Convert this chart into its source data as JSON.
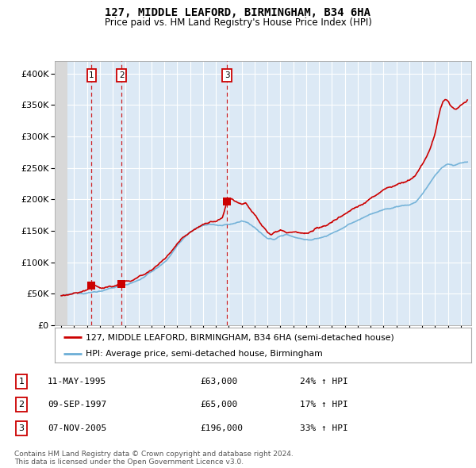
{
  "title1": "127, MIDDLE LEAFORD, BIRMINGHAM, B34 6HA",
  "title2": "Price paid vs. HM Land Registry's House Price Index (HPI)",
  "legend_label_red": "127, MIDDLE LEAFORD, BIRMINGHAM, B34 6HA (semi-detached house)",
  "legend_label_blue": "HPI: Average price, semi-detached house, Birmingham",
  "transactions": [
    {
      "label": "1",
      "date_num": 1995.36,
      "price": 63000
    },
    {
      "label": "2",
      "date_num": 1997.69,
      "price": 65000
    },
    {
      "label": "3",
      "date_num": 2005.85,
      "price": 196000
    }
  ],
  "table_rows": [
    {
      "num": "1",
      "date": "11-MAY-1995",
      "price": "£63,000",
      "hpi": "24% ↑ HPI"
    },
    {
      "num": "2",
      "date": "09-SEP-1997",
      "price": "£65,000",
      "hpi": "17% ↑ HPI"
    },
    {
      "num": "3",
      "date": "07-NOV-2005",
      "price": "£196,000",
      "hpi": "33% ↑ HPI"
    }
  ],
  "footer": "Contains HM Land Registry data © Crown copyright and database right 2024.\nThis data is licensed under the Open Government Licence v3.0.",
  "ylim": [
    0,
    420000
  ],
  "xlim": [
    1992.5,
    2024.8
  ],
  "yticks": [
    0,
    50000,
    100000,
    150000,
    200000,
    250000,
    300000,
    350000,
    400000
  ],
  "ytick_labels": [
    "£0",
    "£50K",
    "£100K",
    "£150K",
    "£200K",
    "£250K",
    "£300K",
    "£350K",
    "£400K"
  ],
  "xticks": [
    1993,
    1994,
    1995,
    1996,
    1997,
    1998,
    1999,
    2000,
    2001,
    2002,
    2003,
    2004,
    2005,
    2006,
    2007,
    2008,
    2009,
    2010,
    2011,
    2012,
    2013,
    2014,
    2015,
    2016,
    2017,
    2018,
    2019,
    2020,
    2021,
    2022,
    2023,
    2024
  ],
  "background_color": "#ffffff",
  "plot_bg_color": "#dce9f5",
  "grid_color": "#ffffff",
  "red_color": "#cc0000",
  "blue_color": "#6baed6",
  "hpi_base_points": [
    [
      1993.0,
      47000
    ],
    [
      1993.5,
      47500
    ],
    [
      1994.0,
      49000
    ],
    [
      1994.5,
      50000
    ],
    [
      1995.0,
      51500
    ],
    [
      1995.5,
      53000
    ],
    [
      1996.0,
      55000
    ],
    [
      1996.5,
      57000
    ],
    [
      1997.0,
      59000
    ],
    [
      1997.5,
      62000
    ],
    [
      1998.0,
      65000
    ],
    [
      1998.5,
      68000
    ],
    [
      1999.0,
      72000
    ],
    [
      1999.5,
      78000
    ],
    [
      2000.0,
      85000
    ],
    [
      2000.5,
      92000
    ],
    [
      2001.0,
      100000
    ],
    [
      2001.5,
      112000
    ],
    [
      2002.0,
      127000
    ],
    [
      2002.5,
      140000
    ],
    [
      2003.0,
      150000
    ],
    [
      2003.5,
      157000
    ],
    [
      2004.0,
      162000
    ],
    [
      2004.5,
      165000
    ],
    [
      2005.0,
      163000
    ],
    [
      2005.5,
      162000
    ],
    [
      2006.0,
      163000
    ],
    [
      2006.5,
      165000
    ],
    [
      2007.0,
      168000
    ],
    [
      2007.5,
      165000
    ],
    [
      2008.0,
      158000
    ],
    [
      2008.5,
      148000
    ],
    [
      2009.0,
      138000
    ],
    [
      2009.5,
      137000
    ],
    [
      2010.0,
      143000
    ],
    [
      2010.5,
      145000
    ],
    [
      2011.0,
      142000
    ],
    [
      2011.5,
      140000
    ],
    [
      2012.0,
      138000
    ],
    [
      2012.5,
      138000
    ],
    [
      2013.0,
      140000
    ],
    [
      2013.5,
      143000
    ],
    [
      2014.0,
      148000
    ],
    [
      2014.5,
      153000
    ],
    [
      2015.0,
      158000
    ],
    [
      2015.5,
      163000
    ],
    [
      2016.0,
      168000
    ],
    [
      2016.5,
      173000
    ],
    [
      2017.0,
      178000
    ],
    [
      2017.5,
      182000
    ],
    [
      2018.0,
      185000
    ],
    [
      2018.5,
      187000
    ],
    [
      2019.0,
      190000
    ],
    [
      2019.5,
      192000
    ],
    [
      2020.0,
      193000
    ],
    [
      2020.5,
      198000
    ],
    [
      2021.0,
      210000
    ],
    [
      2021.5,
      225000
    ],
    [
      2022.0,
      240000
    ],
    [
      2022.5,
      252000
    ],
    [
      2023.0,
      258000
    ],
    [
      2023.5,
      255000
    ],
    [
      2024.0,
      258000
    ],
    [
      2024.5,
      260000
    ]
  ],
  "pp_base_points": [
    [
      1993.0,
      47000
    ],
    [
      1993.5,
      47500
    ],
    [
      1994.0,
      49000
    ],
    [
      1994.5,
      50500
    ],
    [
      1995.0,
      52000
    ],
    [
      1995.36,
      63000
    ],
    [
      1995.5,
      62000
    ],
    [
      1995.8,
      60000
    ],
    [
      1996.0,
      58000
    ],
    [
      1996.5,
      58500
    ],
    [
      1997.0,
      60000
    ],
    [
      1997.69,
      65000
    ],
    [
      1997.9,
      65000
    ],
    [
      1998.0,
      66000
    ],
    [
      1998.5,
      69000
    ],
    [
      1999.0,
      74000
    ],
    [
      1999.5,
      80000
    ],
    [
      2000.0,
      88000
    ],
    [
      2000.5,
      96000
    ],
    [
      2001.0,
      105000
    ],
    [
      2001.5,
      115000
    ],
    [
      2002.0,
      128000
    ],
    [
      2002.5,
      140000
    ],
    [
      2003.0,
      150000
    ],
    [
      2003.5,
      157000
    ],
    [
      2004.0,
      163000
    ],
    [
      2004.5,
      167000
    ],
    [
      2005.0,
      168000
    ],
    [
      2005.5,
      172000
    ],
    [
      2005.85,
      196000
    ],
    [
      2006.0,
      198000
    ],
    [
      2006.2,
      200000
    ],
    [
      2006.5,
      197000
    ],
    [
      2007.0,
      195000
    ],
    [
      2007.3,
      198000
    ],
    [
      2007.5,
      193000
    ],
    [
      2008.0,
      182000
    ],
    [
      2008.5,
      168000
    ],
    [
      2009.0,
      155000
    ],
    [
      2009.3,
      152000
    ],
    [
      2009.5,
      155000
    ],
    [
      2010.0,
      162000
    ],
    [
      2010.3,
      160000
    ],
    [
      2010.5,
      158000
    ],
    [
      2011.0,
      157000
    ],
    [
      2011.5,
      155000
    ],
    [
      2012.0,
      153000
    ],
    [
      2012.5,
      154000
    ],
    [
      2013.0,
      158000
    ],
    [
      2013.5,
      162000
    ],
    [
      2014.0,
      168000
    ],
    [
      2014.5,
      175000
    ],
    [
      2015.0,
      181000
    ],
    [
      2015.5,
      188000
    ],
    [
      2016.0,
      194000
    ],
    [
      2016.5,
      200000
    ],
    [
      2017.0,
      207000
    ],
    [
      2017.5,
      213000
    ],
    [
      2018.0,
      220000
    ],
    [
      2018.5,
      225000
    ],
    [
      2019.0,
      228000
    ],
    [
      2019.5,
      232000
    ],
    [
      2020.0,
      235000
    ],
    [
      2020.5,
      245000
    ],
    [
      2021.0,
      260000
    ],
    [
      2021.3,
      272000
    ],
    [
      2021.6,
      285000
    ],
    [
      2022.0,
      310000
    ],
    [
      2022.2,
      330000
    ],
    [
      2022.4,
      348000
    ],
    [
      2022.6,
      358000
    ],
    [
      2022.8,
      362000
    ],
    [
      2023.0,
      358000
    ],
    [
      2023.2,
      352000
    ],
    [
      2023.4,
      348000
    ],
    [
      2023.6,
      345000
    ],
    [
      2023.8,
      347000
    ],
    [
      2024.0,
      350000
    ],
    [
      2024.3,
      355000
    ],
    [
      2024.5,
      358000
    ]
  ]
}
